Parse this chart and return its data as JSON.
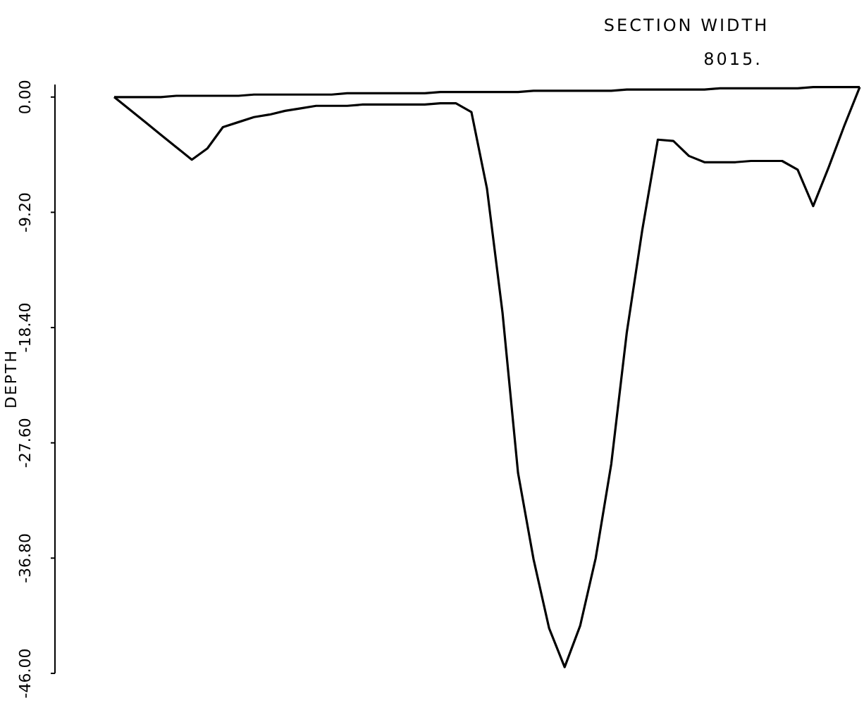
{
  "chart_data": {
    "type": "line",
    "title": "SECTION WIDTH",
    "subtitle": "8015.",
    "ylabel": "DEPTH",
    "categories": [
      null,
      null,
      null,
      null,
      null,
      null,
      null,
      null,
      null,
      null,
      null,
      null,
      null,
      null,
      null,
      null,
      null,
      null,
      null,
      null,
      null,
      null,
      null,
      null,
      null,
      null,
      null,
      null,
      null,
      null,
      null,
      null,
      null,
      null,
      null,
      null,
      null,
      null,
      null,
      null,
      null,
      null,
      null,
      null,
      null,
      null,
      null,
      null,
      null
    ],
    "series": [
      {
        "color": "#000000",
        "values": [
          0,
          -1.0,
          -2.0,
          -3.0,
          -4.0,
          -5.0,
          -4.1,
          -2.4,
          -2.0,
          -1.6,
          -1.4,
          -1.1,
          -0.9,
          -0.7,
          -0.7,
          -0.7,
          -0.6,
          -0.6,
          -0.6,
          -0.6,
          -0.6,
          -0.5,
          -0.5,
          -1.2,
          -7.3,
          -17.2,
          -30.0,
          -36.9,
          -42.4,
          -45.5,
          -42.2,
          -36.8,
          -29.3,
          -18.8,
          -10.6,
          -3.4,
          -3.5,
          -4.7,
          -5.2,
          -5.2,
          -5.2,
          -5.1,
          -5.1,
          -5.1,
          -5.8,
          -8.7,
          -5.6,
          -2.3,
          0.8
        ]
      },
      {
        "color": "#000000",
        "values": [
          0,
          0,
          0,
          0,
          0.1,
          0.1,
          0.1,
          0.1,
          0.1,
          0.2,
          0.2,
          0.2,
          0.2,
          0.2,
          0.2,
          0.3,
          0.3,
          0.3,
          0.3,
          0.3,
          0.3,
          0.4,
          0.4,
          0.4,
          0.4,
          0.4,
          0.4,
          0.5,
          0.5,
          0.5,
          0.5,
          0.5,
          0.5,
          0.6,
          0.6,
          0.6,
          0.6,
          0.6,
          0.6,
          0.7,
          0.7,
          0.7,
          0.7,
          0.7,
          0.7,
          0.8,
          0.8,
          0.8,
          0.8
        ]
      }
    ],
    "ylim": [
      -46,
      1
    ],
    "yticks": [
      {
        "value": 0,
        "label": "0.00"
      },
      {
        "value": -9.2,
        "label": "-9.20"
      },
      {
        "value": -18.4,
        "label": "-18.40"
      },
      {
        "value": -27.6,
        "label": "-27.60"
      },
      {
        "value": -36.8,
        "label": "-36.80"
      },
      {
        "value": -46,
        "label": "-46.00"
      }
    ],
    "tick_labels": "y",
    "grid": false,
    "marker": "none",
    "line_style": "solid"
  }
}
